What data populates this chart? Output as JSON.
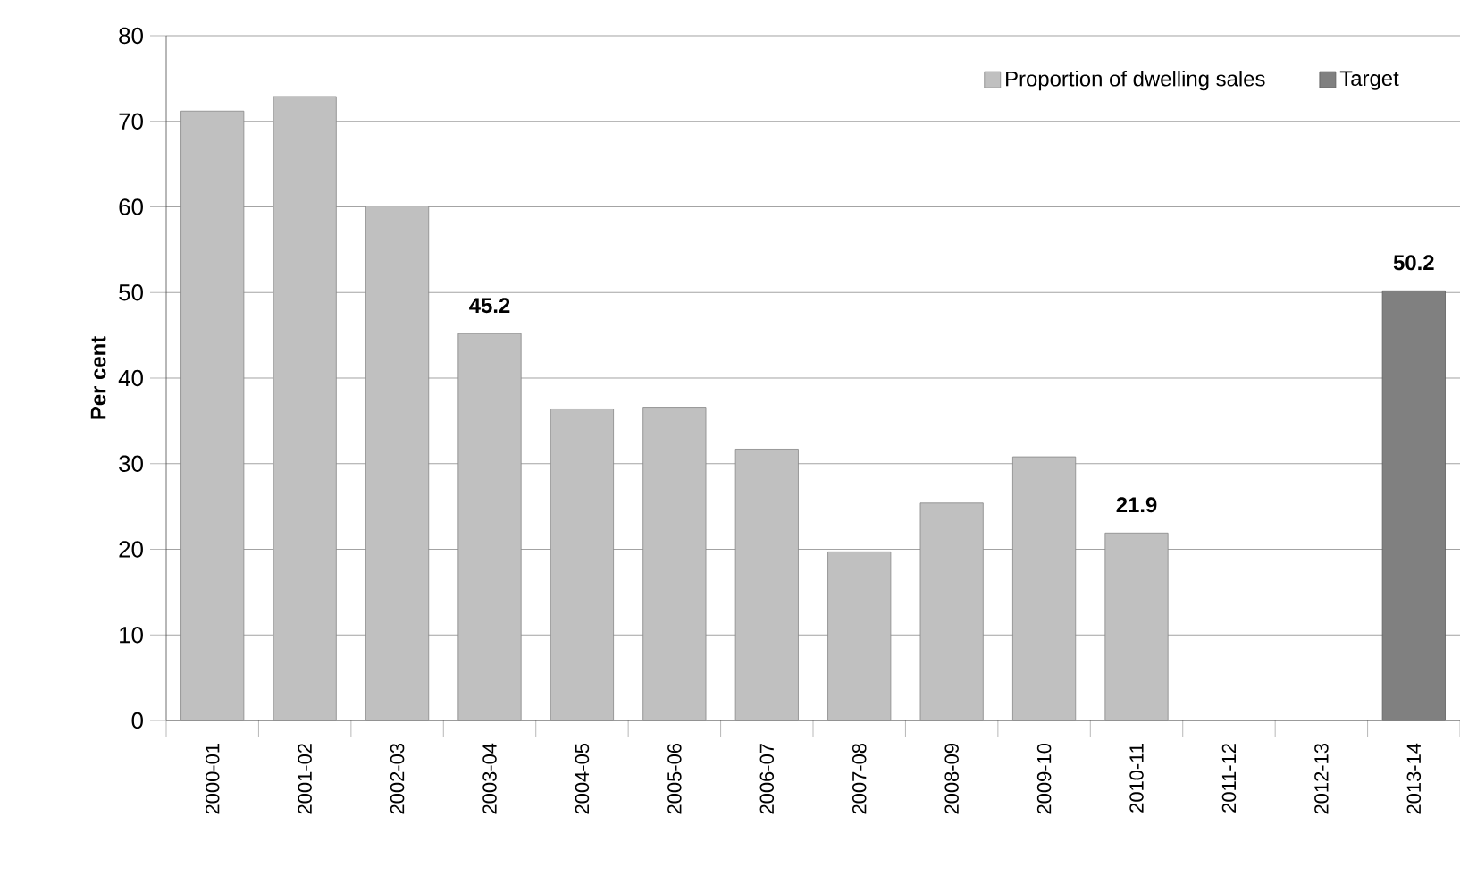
{
  "chart_data": {
    "type": "bar",
    "ylabel": "Per cent",
    "categories": [
      "2000-01",
      "2001-02",
      "2002-03",
      "2003-04",
      "2004-05",
      "2005-06",
      "2006-07",
      "2007-08",
      "2008-09",
      "2009-10",
      "2010-11",
      "2011-12",
      "2012-13",
      "2013-14"
    ],
    "series": [
      {
        "name": "Proportion of dwelling sales",
        "color": "#c0c0c0",
        "values": [
          71.2,
          72.9,
          60.1,
          45.2,
          36.4,
          36.6,
          31.7,
          19.7,
          25.4,
          30.8,
          21.9,
          null,
          null,
          null
        ],
        "value_labels": [
          null,
          null,
          null,
          "45.2",
          null,
          null,
          null,
          null,
          null,
          null,
          "21.9",
          null,
          null,
          null
        ]
      },
      {
        "name": "Target",
        "color": "#808080",
        "values": [
          null,
          null,
          null,
          null,
          null,
          null,
          null,
          null,
          null,
          null,
          null,
          null,
          null,
          50.2
        ],
        "value_labels": [
          null,
          null,
          null,
          null,
          null,
          null,
          null,
          null,
          null,
          null,
          null,
          null,
          null,
          "50.2"
        ]
      }
    ],
    "ylim": [
      0,
      80
    ],
    "yticks": [
      0,
      10,
      20,
      30,
      40,
      50,
      60,
      70,
      80
    ],
    "grid": "y",
    "legend": "top right"
  }
}
